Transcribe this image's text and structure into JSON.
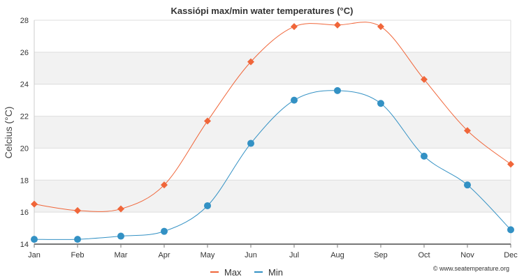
{
  "chart_data": {
    "type": "line",
    "title": "Kassiópi max/min water temperatures (°C)",
    "xlabel": "",
    "ylabel": "Celcius (°C)",
    "categories": [
      "Jan",
      "Feb",
      "Mar",
      "Apr",
      "May",
      "Jun",
      "Jul",
      "Aug",
      "Sep",
      "Oct",
      "Nov",
      "Dec"
    ],
    "ylim": [
      14,
      28
    ],
    "yticks": [
      14,
      16,
      18,
      20,
      22,
      24,
      26,
      28
    ],
    "grid": "horizontal alternating bands",
    "legend_placement": "bottom-center",
    "series": [
      {
        "name": "Max",
        "color": "#f0663a",
        "marker": "diamond",
        "values": [
          16.5,
          16.1,
          16.2,
          17.7,
          21.7,
          25.4,
          27.6,
          27.7,
          27.6,
          24.3,
          21.1,
          19.0
        ]
      },
      {
        "name": "Min",
        "color": "#3391c4",
        "marker": "circle",
        "values": [
          14.3,
          14.3,
          14.5,
          14.8,
          16.4,
          20.3,
          23.0,
          23.6,
          22.8,
          19.5,
          17.7,
          14.9
        ]
      }
    ]
  },
  "credit": "© www.seatemperature.org"
}
